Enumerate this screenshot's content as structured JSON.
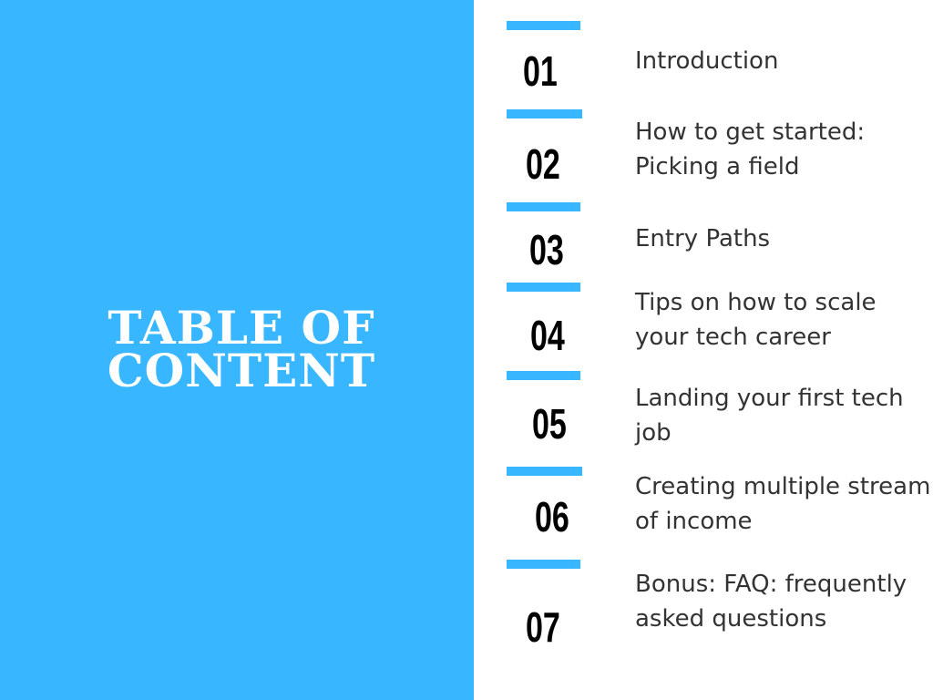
{
  "title": {
    "line1": "TABLE OF",
    "line2": "CONTENT"
  },
  "items": [
    {
      "number": "01",
      "text": "Introduction"
    },
    {
      "number": "02",
      "text": "How to get started:\nPicking a field"
    },
    {
      "number": "03",
      "text": "Entry Paths"
    },
    {
      "number": "04",
      "text": "Tips on how to scale\nyour tech career"
    },
    {
      "number": "05",
      "text": "Landing your first tech\njob"
    },
    {
      "number": "06",
      "text": "Creating multiple stream\nof income"
    },
    {
      "number": "07",
      "text": "Bonus: FAQ: frequently\nasked questions"
    }
  ],
  "colors": {
    "accent": "#38b6ff",
    "title_text": "#ffffff",
    "number_text": "#000000",
    "body_text": "#333333",
    "background": "#ffffff"
  }
}
